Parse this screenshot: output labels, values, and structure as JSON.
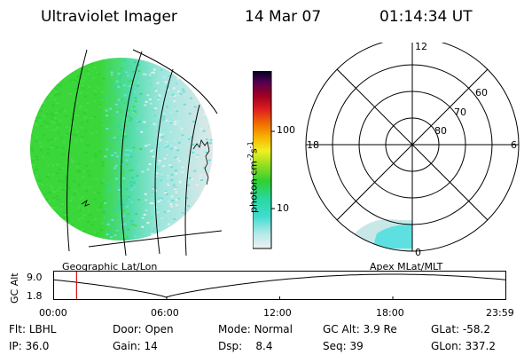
{
  "header": {
    "instrument": "Ultraviolet Imager",
    "date": "14 Mar 07",
    "time": "01:14:34 UT"
  },
  "colors": {
    "earth_disc": "#3ad63a",
    "dayside": "#dfe8e8",
    "aurora": "#5fe0e0",
    "cursor": "#d01010"
  },
  "colorbar": {
    "unit": "photon cm",
    "unit_sup1": "-2",
    "unit_mid": "s",
    "unit_sup2": "-1",
    "ticks": [
      {
        "label": "100",
        "value": 100
      },
      {
        "label": "10",
        "value": 10
      }
    ]
  },
  "geo_panel": {
    "caption": "Geographic Lat/Lon"
  },
  "polar_panel": {
    "caption": "Apex MLat/MLT",
    "mlt_labels": {
      "top": "12",
      "left": "18",
      "right": "6",
      "bottom": "0"
    },
    "lat_labels": [
      "60",
      "70",
      "80"
    ]
  },
  "orbit_plot": {
    "ylabel": "GC Alt",
    "yticks": [
      "9.0",
      "1.8"
    ],
    "xticks": [
      "00:00",
      "06:00",
      "12:00",
      "18:00",
      "23:59"
    ],
    "cursor_hour": 1.24
  },
  "status": {
    "flt_label": "Flt:",
    "flt_value": "LBHL",
    "door_label": "Door:",
    "door_value": "Open",
    "mode_label": "Mode:",
    "mode_value": "Normal",
    "gcalt_label": "GC Alt:",
    "gcalt_value": "3.9 Re",
    "glat_label": "GLat:",
    "glat_value": "-58.2",
    "ip_label": "IP:",
    "ip_value": "36.0",
    "gain_label": "Gain:",
    "gain_value": "14",
    "dsp_label": "Dsp:",
    "dsp_value": "8.4",
    "seq_label": "Seq:",
    "seq_value": "39",
    "glon_label": "GLon:",
    "glon_value": "337.2"
  }
}
